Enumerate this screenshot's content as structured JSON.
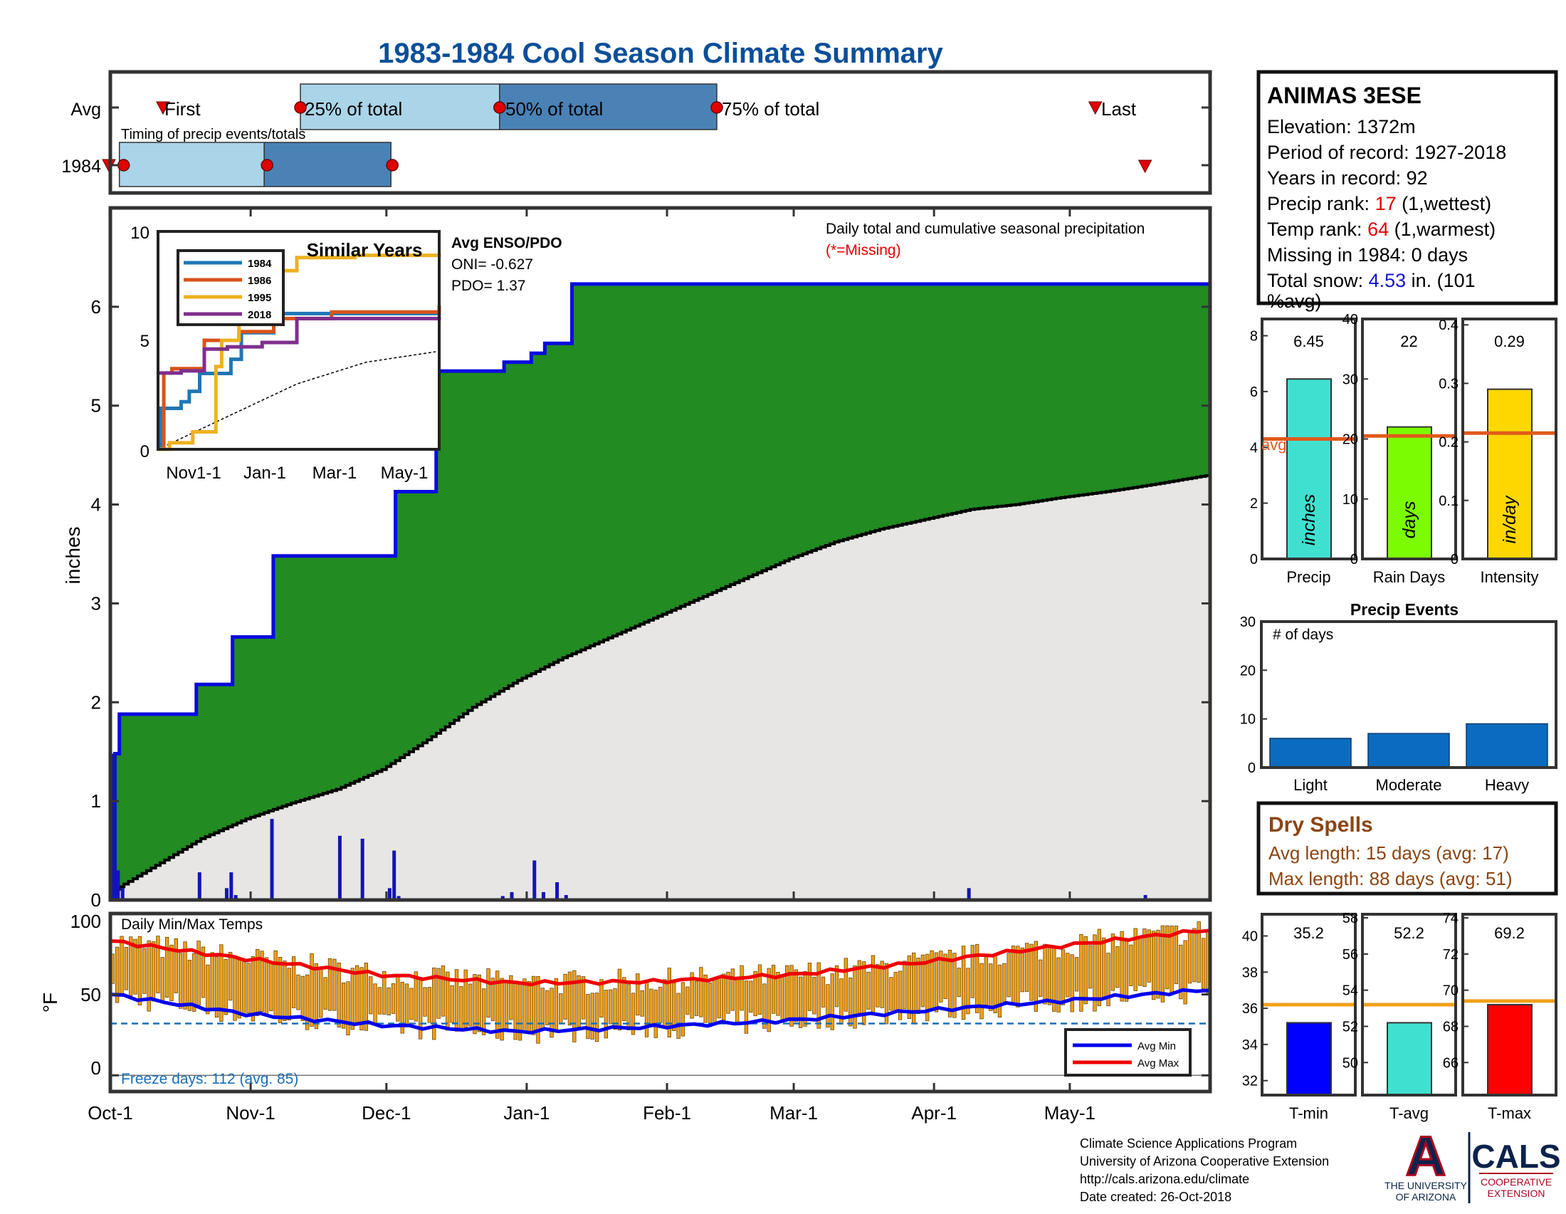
{
  "title": "1983-1984 Cool Season Climate Summary",
  "timing": {
    "row_avg": "Avg",
    "row_year": "1984",
    "caption": "Timing of precip events/totals",
    "first_label": "First",
    "p25_label": "25% of total",
    "p50_label": "50% of total",
    "p75_label": "75% of total",
    "last_label": "Last"
  },
  "station": {
    "name": "ANIMAS 3ESE",
    "elevation_label": "Elevation: 1372m",
    "period_label": "Period of record: 1927-2018",
    "years_label": "Years in record: 92",
    "precip_rank_prefix": "Precip rank: ",
    "precip_rank_value": "17",
    "precip_rank_suffix": " (1,wettest)",
    "temp_rank_prefix": "Temp rank: ",
    "temp_rank_value": "64",
    "temp_rank_suffix": " (1,warmest)",
    "missing_label": "Missing in 1984: 0 days",
    "snow_prefix": "Total snow: ",
    "snow_value": "4.53",
    "snow_suffix": " in. (101",
    "snow_suffix2": "%avg)"
  },
  "main_panel": {
    "caption": "Daily total and cumulative seasonal precipitation",
    "missing_note": "(*=Missing)",
    "ylabel": "inches",
    "enso_title": "Avg ENSO/PDO",
    "oni_label": "ONI= -0.627",
    "pdo_label": "PDO= 1.37"
  },
  "similar_years": {
    "title": "Similar Years",
    "xticks": [
      "Nov1-1",
      "Jan-1",
      "Mar-1",
      "May-1"
    ],
    "yticks": [
      "0",
      "5",
      "10"
    ],
    "legend": [
      "1984",
      "1986",
      "1995",
      "2018"
    ]
  },
  "temp_panel": {
    "caption": "Daily Min/Max Temps",
    "ylabel": "°F",
    "freeze_label": "Freeze days: 112 (avg. 85)",
    "legend_min": "Avg Min",
    "legend_max": "Avg Max"
  },
  "side_bars": {
    "precip": {
      "value_label": "6.45",
      "xlabel": "Precip",
      "unit": "inches",
      "yticks": [
        "0",
        "2",
        "4",
        "6",
        "8"
      ],
      "avg_text": "avg"
    },
    "rain_days": {
      "value_label": "22",
      "xlabel": "Rain Days",
      "unit": "days",
      "yticks": [
        "0",
        "10",
        "20",
        "30",
        "40"
      ]
    },
    "intensity": {
      "value_label": "0.29",
      "xlabel": "Intensity",
      "unit": "in/day",
      "yticks": [
        "0",
        "0.1",
        "0.2",
        "0.3",
        "0.4"
      ]
    }
  },
  "precip_events": {
    "title": "Precip Events",
    "sublabel": "# of days",
    "yticks": [
      "0",
      "10",
      "20",
      "30"
    ]
  },
  "dry_spells": {
    "title": "Dry Spells",
    "avg_label": "Avg length: 15 days (avg: 17)",
    "max_label": "Max length: 88 days (avg: 51)"
  },
  "temp_bars": {
    "tmin": {
      "value_label": "35.2",
      "xlabel": "T-min",
      "yticks": [
        "32",
        "34",
        "36",
        "38",
        "40"
      ]
    },
    "tavg": {
      "value_label": "52.2",
      "xlabel": "T-avg",
      "yticks": [
        "50",
        "52",
        "54",
        "56",
        "58"
      ]
    },
    "tmax": {
      "value_label": "69.2",
      "xlabel": "T-max",
      "yticks": [
        "66",
        "68",
        "70",
        "72",
        "74"
      ]
    }
  },
  "footer": {
    "line1": "Climate Science Applications Program",
    "line2": "University of Arizona Cooperative Extension",
    "line3": "http://cals.arizona.edu/climate",
    "line4": " Date created: 26-Oct-2018",
    "ua_line1": "THE UNIVERSITY",
    "ua_line2": "OF ARIZONA",
    "ua_letter": "A",
    "cals": "CALS",
    "cals_sub1": "COOPERATIVE",
    "cals_sub2": "EXTENSION"
  },
  "colors": {
    "title": "#0b4f99",
    "green": "#228b22",
    "cum_line": "#0a0ae0",
    "light_box": "#aad4e8",
    "dark_box": "#4a82b6",
    "red": "#e00000",
    "orange": "#f0a019",
    "avg_line": "#e05a1c"
  },
  "chart_data": [
    {
      "type": "area",
      "name": "main",
      "xticks": [
        "Oct-1",
        "Nov-1",
        "Dec-1",
        "Jan-1",
        "Feb-1",
        "Mar-1",
        "Apr-1",
        "May-1"
      ],
      "xlim_days": [
        0,
        243
      ],
      "ylim": [
        0,
        7
      ],
      "yticks": [
        0,
        1,
        2,
        3,
        4,
        5,
        6
      ],
      "ylabel": "inches",
      "cumulative_1984": {
        "x_day": [
          0,
          1,
          2,
          8,
          9,
          18,
          19,
          26,
          27,
          35,
          36,
          62,
          63,
          71,
          72,
          86,
          87,
          92,
          93,
          95,
          96,
          101,
          102,
          108,
          109,
          242,
          243
        ],
        "y": [
          0,
          1.48,
          1.88,
          1.88,
          1.88,
          1.88,
          2.18,
          2.18,
          2.66,
          2.66,
          3.48,
          3.48,
          4.13,
          4.13,
          5.35,
          5.35,
          5.44,
          5.44,
          5.53,
          5.53,
          5.63,
          5.63,
          6.23,
          6.23,
          6.23,
          6.23,
          6.45
        ]
      },
      "average_cumulative": {
        "x_day": [
          0,
          10,
          20,
          30,
          40,
          50,
          60,
          70,
          80,
          90,
          100,
          110,
          120,
          130,
          140,
          150,
          160,
          170,
          180,
          190,
          200,
          210,
          220,
          230,
          243
        ],
        "y": [
          0.08,
          0.35,
          0.62,
          0.82,
          0.98,
          1.12,
          1.32,
          1.62,
          1.95,
          2.22,
          2.45,
          2.65,
          2.85,
          3.05,
          3.25,
          3.45,
          3.62,
          3.75,
          3.85,
          3.95,
          4.0,
          4.07,
          4.13,
          4.2,
          4.3
        ]
      },
      "daily_precip": {
        "x_day": [
          0,
          1,
          2,
          19,
          25,
          26,
          27,
          35,
          50,
          55,
          61,
          62,
          63,
          86,
          88,
          95,
          93,
          98,
          100,
          189,
          228
        ],
        "y": [
          1.48,
          0.3,
          0.12,
          0.28,
          0.12,
          0.28,
          0.05,
          0.82,
          0.65,
          0.62,
          0.12,
          0.5,
          0.04,
          0.04,
          0.08,
          0.08,
          0.4,
          0.18,
          0.05,
          0.12,
          0.05
        ]
      }
    },
    {
      "type": "line",
      "name": "similar_years",
      "xlim_days": [
        0,
        243
      ],
      "ylim": [
        0,
        10
      ],
      "series": [
        {
          "name": "1984",
          "x_day": [
            0,
            2,
            20,
            27,
            36,
            63,
            72,
            100,
            243
          ],
          "y": [
            0,
            1.88,
            2.18,
            2.66,
            3.48,
            4.13,
            5.35,
            6.23,
            6.45
          ]
        },
        {
          "name": "1986",
          "x_day": [
            0,
            5,
            12,
            40,
            70,
            100,
            150,
            243
          ],
          "y": [
            0,
            3.5,
            3.7,
            5.0,
            5.4,
            6.0,
            6.3,
            6.6
          ]
        },
        {
          "name": "1995",
          "x_day": [
            0,
            10,
            30,
            50,
            55,
            70,
            90,
            120,
            170,
            243
          ],
          "y": [
            0,
            0.3,
            0.8,
            3.8,
            5.0,
            6.2,
            8.2,
            8.8,
            8.9,
            9.0
          ]
        },
        {
          "name": "2018",
          "x_day": [
            0,
            20,
            40,
            60,
            90,
            120,
            243
          ],
          "y": [
            3.5,
            3.6,
            4.6,
            4.7,
            4.9,
            6.0,
            6.1
          ]
        }
      ],
      "average": {
        "x_day": [
          0,
          60,
          120,
          180,
          243
        ],
        "y": [
          0,
          1.5,
          3.0,
          4.0,
          4.5
        ]
      }
    },
    {
      "type": "bar",
      "name": "precip_events",
      "categories": [
        "Light",
        "Moderate",
        "Heavy"
      ],
      "values": [
        6,
        7,
        9
      ],
      "ylim": [
        0,
        30
      ]
    },
    {
      "type": "bar",
      "name": "season_totals",
      "categories": [
        "Precip",
        "Rain Days",
        "Intensity"
      ],
      "values": [
        6.45,
        22,
        0.29
      ],
      "averages": [
        4.3,
        20.5,
        0.215
      ],
      "ylims": [
        [
          0,
          8.6
        ],
        [
          0,
          40
        ],
        [
          0,
          0.41
        ]
      ]
    },
    {
      "type": "bar",
      "name": "season_temps",
      "categories": [
        "T-min",
        "T-avg",
        "T-max"
      ],
      "values": [
        35.2,
        52.2,
        69.2
      ],
      "averages": [
        36.2,
        53.2,
        69.4
      ],
      "ylims": [
        [
          31.2,
          41.2
        ],
        [
          48.2,
          58.2
        ],
        [
          64.2,
          74.2
        ]
      ]
    },
    {
      "type": "bar",
      "name": "daily_temps",
      "ylim": [
        -10,
        100
      ],
      "yticks": [
        0,
        50,
        100
      ],
      "freeze_line": 32,
      "avg_max": {
        "x_day": [
          0,
          30,
          60,
          90,
          120,
          150,
          180,
          210,
          243
        ],
        "y": [
          83,
          72,
          62,
          57,
          58,
          62,
          70,
          80,
          90
        ]
      },
      "avg_min": {
        "x_day": [
          0,
          30,
          60,
          90,
          120,
          150,
          180,
          210,
          243
        ],
        "y": [
          50,
          38,
          31,
          27,
          30,
          34,
          40,
          46,
          53
        ]
      }
    },
    {
      "type": "line",
      "name": "timing",
      "avg": {
        "first": 11,
        "p25": 42,
        "p50": 86,
        "p75": 134,
        "last": 217
      },
      "year_1984": {
        "first": 0,
        "p25": 2,
        "p50": 34,
        "p75": 62,
        "last": 228
      }
    }
  ]
}
